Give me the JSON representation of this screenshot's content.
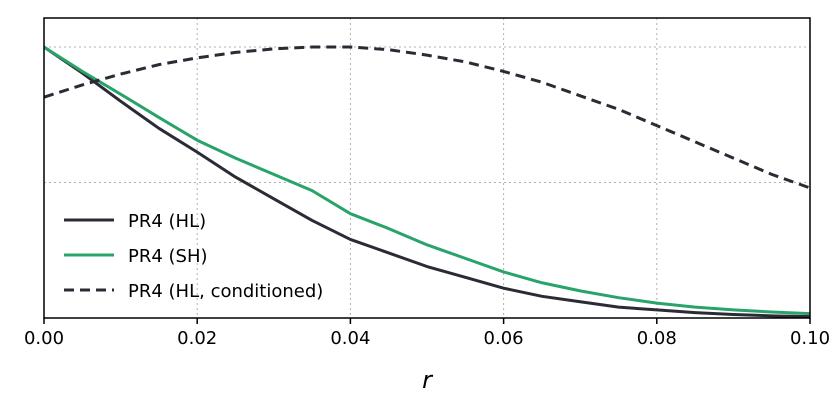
{
  "chart_data": {
    "type": "line",
    "title": "",
    "xlabel": "r",
    "ylabel": "",
    "xlim": [
      0.0,
      0.1
    ],
    "ylim": [
      0.0,
      1.0
    ],
    "grid": true,
    "legend_position": "lower-left",
    "x_ticks": [
      "0.00",
      "0.02",
      "0.04",
      "0.06",
      "0.08",
      "0.10"
    ],
    "x": [
      0.0,
      0.005,
      0.01,
      0.015,
      0.02,
      0.025,
      0.03,
      0.035,
      0.04,
      0.045,
      0.05,
      0.055,
      0.06,
      0.065,
      0.07,
      0.075,
      0.08,
      0.085,
      0.09,
      0.095,
      0.1
    ],
    "series": [
      {
        "name": "PR4 (HL)",
        "color": "#2b2b35",
        "dash": "solid",
        "values": [
          1.0,
          0.904,
          0.8,
          0.7,
          0.612,
          0.52,
          0.44,
          0.36,
          0.29,
          0.24,
          0.19,
          0.15,
          0.11,
          0.08,
          0.06,
          0.04,
          0.03,
          0.02,
          0.013,
          0.008,
          0.005
        ]
      },
      {
        "name": "PR4 (SH)",
        "color": "#2aa36b",
        "dash": "solid",
        "values": [
          1.0,
          0.91,
          0.826,
          0.74,
          0.656,
          0.59,
          0.53,
          0.47,
          0.385,
          0.33,
          0.27,
          0.22,
          0.17,
          0.13,
          0.1,
          0.075,
          0.055,
          0.04,
          0.03,
          0.022,
          0.016
        ]
      },
      {
        "name": "PR4 (HL, conditioned)",
        "color": "#2b2b35",
        "dash": "dashed",
        "values": [
          0.815,
          0.86,
          0.9,
          0.935,
          0.96,
          0.98,
          0.993,
          1.0,
          1.0,
          0.99,
          0.97,
          0.945,
          0.91,
          0.87,
          0.82,
          0.77,
          0.71,
          0.65,
          0.59,
          0.53,
          0.48
        ]
      }
    ]
  }
}
